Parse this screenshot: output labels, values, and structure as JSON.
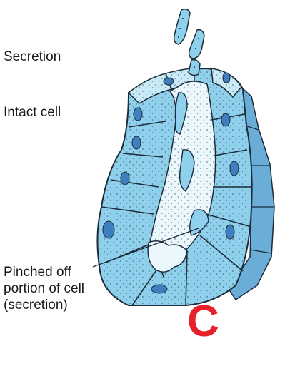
{
  "labels": {
    "secretion": "Secretion",
    "intact_cell": "Intact cell",
    "pinched_line1": "Pinched off",
    "pinched_line2": "portion of cell",
    "pinched_line3": "(secretion)"
  },
  "panel_letter": "C",
  "colors": {
    "cell_fill": "#8fd0ec",
    "cell_light": "#c9ebf7",
    "cell_side": "#6aaed8",
    "lumen": "#eaf7fc",
    "outline": "#1b2b3a",
    "nucleus": "#3f7fc0",
    "letter": "#e8202a"
  }
}
